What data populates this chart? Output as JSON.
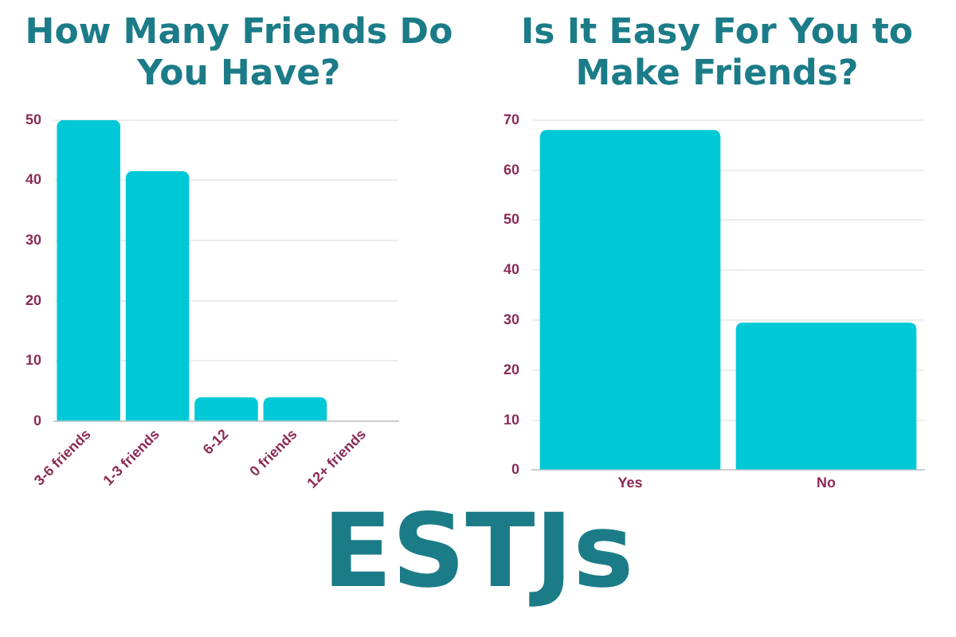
{
  "chart_data": [
    {
      "type": "bar",
      "title": "How Many Friends Do You Have?",
      "categories": [
        "3-6 friends",
        "1-3 friends",
        "6-12",
        "0 friends",
        "12+ friends"
      ],
      "values": [
        50,
        41.5,
        4,
        4,
        0
      ],
      "color": "#00c8d7",
      "ylim": [
        0,
        50
      ],
      "yticks": [
        0,
        10,
        20,
        30,
        40,
        50
      ],
      "grid": "y",
      "annotations": [
        "ESTJs"
      ]
    },
    {
      "type": "bar",
      "title": "Is It Easy For You to Make Friends?",
      "categories": [
        "Yes",
        "No"
      ],
      "values": [
        68,
        29.5
      ],
      "color": "#00c8d7",
      "ylim": [
        0,
        70
      ],
      "yticks": [
        0,
        10,
        20,
        30,
        40,
        50,
        60,
        70
      ],
      "grid": "y"
    }
  ]
}
